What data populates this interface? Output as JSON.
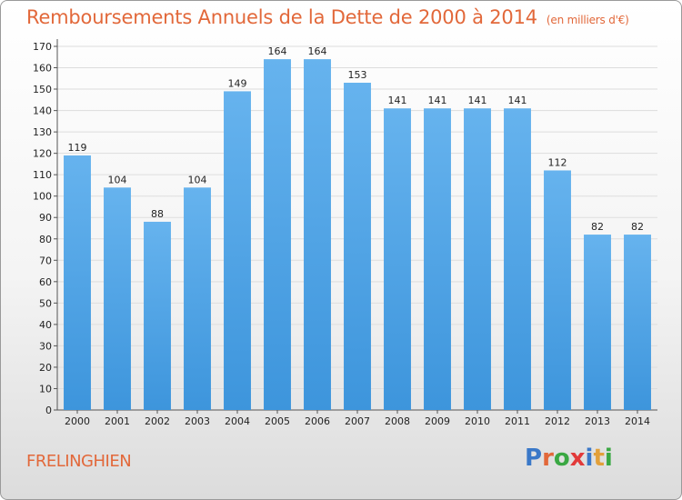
{
  "header": {
    "title": "Remboursements Annuels de la Dette de 2000 à 2014",
    "unit": "(en milliers d'€)"
  },
  "footer": {
    "place": "FRELINGHIEN",
    "logo_letters": [
      "P",
      "r",
      "o",
      "x",
      "i",
      "t",
      "i"
    ],
    "logo_colors": [
      "#3a78c8",
      "#e2683a",
      "#3aa843",
      "#e23a3a",
      "#3a78c8",
      "#e2a03a",
      "#3aa843"
    ]
  },
  "colors": {
    "bar": "#3d95dc",
    "bar_light": "#66b3ee",
    "grid": "#dddddd",
    "axis": "#555555",
    "title": "#e2683a"
  },
  "chart_data": {
    "type": "bar",
    "title": "Remboursements Annuels de la Dette de 2000 à 2014",
    "ylabel": "",
    "xlabel": "",
    "categories": [
      "2000",
      "2001",
      "2002",
      "2003",
      "2004",
      "2005",
      "2006",
      "2007",
      "2008",
      "2009",
      "2010",
      "2011",
      "2012",
      "2013",
      "2014"
    ],
    "values": [
      119,
      104,
      88,
      104,
      149,
      164,
      164,
      153,
      141,
      141,
      141,
      141,
      112,
      82,
      82
    ],
    "ylim": [
      0,
      170
    ],
    "yticks": [
      0,
      10,
      20,
      30,
      40,
      50,
      60,
      70,
      80,
      90,
      100,
      110,
      120,
      130,
      140,
      150,
      160,
      170
    ],
    "grid": true,
    "legend": "none"
  }
}
